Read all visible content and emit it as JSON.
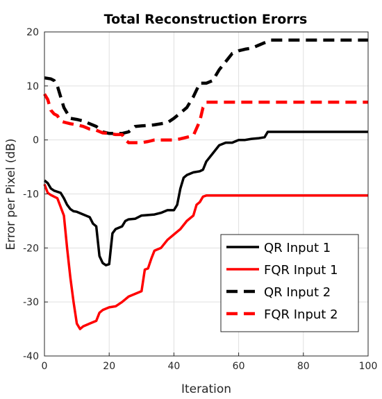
{
  "chart_data": {
    "type": "line",
    "title": "Total Reconstruction Erorrs",
    "xlabel": "Iteration",
    "ylabel": "Error per Pixel (dB)",
    "xlim": [
      0,
      100
    ],
    "ylim": [
      -40,
      20
    ],
    "xticks": [
      0,
      20,
      40,
      60,
      80,
      100
    ],
    "yticks": [
      -40,
      -30,
      -20,
      -10,
      0,
      10,
      20
    ],
    "grid": true,
    "legend_position": "bottom-right",
    "series": [
      {
        "name": "QR Input 1",
        "color": "#000000",
        "dashed": false,
        "x": [
          0,
          1,
          2,
          3,
          5,
          6,
          7,
          8,
          9,
          10,
          12,
          14,
          15,
          16,
          17,
          18,
          19,
          20,
          21,
          22,
          24,
          25,
          26,
          28,
          30,
          34,
          36,
          38,
          40,
          41,
          42,
          43,
          44,
          46,
          48,
          49,
          50,
          52,
          54,
          56,
          58,
          60,
          62,
          64,
          66,
          68,
          69,
          70,
          75,
          80,
          90,
          100
        ],
        "values": [
          -7.5,
          -8,
          -9,
          -9.4,
          -9.8,
          -10.8,
          -12,
          -12.8,
          -13.2,
          -13.3,
          -13.8,
          -14.3,
          -15.5,
          -16,
          -21.5,
          -22.8,
          -23.2,
          -23,
          -17.3,
          -16.5,
          -16,
          -15,
          -14.7,
          -14.6,
          -14,
          -13.8,
          -13.5,
          -13,
          -13,
          -12,
          -9,
          -7,
          -6.5,
          -6,
          -5.8,
          -5.5,
          -4,
          -2.5,
          -1,
          -0.5,
          -0.5,
          0,
          0,
          0.2,
          0.3,
          0.5,
          1.5,
          1.5,
          1.5,
          1.5,
          1.5,
          1.5
        ]
      },
      {
        "name": "FQR Input 1",
        "color": "#ff0000",
        "dashed": false,
        "x": [
          0,
          1,
          2,
          4,
          6,
          7,
          8,
          9,
          10,
          11,
          12,
          14,
          16,
          17,
          18,
          20,
          22,
          24,
          26,
          28,
          30,
          31,
          32,
          33,
          34,
          36,
          38,
          40,
          42,
          44,
          46,
          47,
          48,
          49,
          50,
          60,
          70,
          80,
          90,
          100
        ],
        "values": [
          -8.2,
          -9.8,
          -10.2,
          -10.8,
          -14,
          -20,
          -25.5,
          -30,
          -34,
          -35,
          -34.5,
          -34,
          -33.5,
          -32,
          -31.5,
          -31,
          -30.8,
          -30,
          -29,
          -28.5,
          -28,
          -24,
          -23.8,
          -22,
          -20.5,
          -20,
          -18.5,
          -17.5,
          -16.5,
          -15,
          -14,
          -12,
          -11.5,
          -10.5,
          -10.3,
          -10.3,
          -10.3,
          -10.3,
          -10.3,
          -10.3
        ]
      },
      {
        "name": "QR Input 2",
        "color": "#000000",
        "dashed": true,
        "x": [
          0,
          2,
          3,
          4,
          5,
          6,
          7,
          8,
          10,
          12,
          14,
          16,
          18,
          20,
          22,
          24,
          26,
          28,
          30,
          32,
          34,
          36,
          38,
          40,
          42,
          44,
          46,
          48,
          50,
          52,
          54,
          56,
          58,
          60,
          62,
          64,
          66,
          68,
          70,
          80,
          90,
          100
        ],
        "values": [
          11.5,
          11.3,
          11,
          10,
          8,
          6,
          5,
          4,
          3.8,
          3.5,
          3,
          2.5,
          1.5,
          1.2,
          1.2,
          1.2,
          1.5,
          2.5,
          2.6,
          2.7,
          2.8,
          3,
          3.2,
          4,
          5,
          6,
          8,
          10.5,
          10.5,
          11,
          13,
          14.5,
          16,
          16.5,
          16.8,
          17,
          17.5,
          18,
          18.5,
          18.5,
          18.5,
          18.5
        ]
      },
      {
        "name": "FQR Input 2",
        "color": "#ff0000",
        "dashed": true,
        "x": [
          0,
          1,
          2,
          3,
          4,
          5,
          6,
          8,
          10,
          12,
          14,
          16,
          18,
          20,
          22,
          24,
          25,
          26,
          28,
          30,
          32,
          34,
          36,
          38,
          40,
          42,
          44,
          46,
          48,
          49,
          50,
          60,
          70,
          80,
          90,
          100
        ],
        "values": [
          8.5,
          7.5,
          5.5,
          4.8,
          4.5,
          3.5,
          3.3,
          3,
          2.8,
          2.5,
          2,
          1.8,
          1.3,
          1.2,
          1,
          1,
          0,
          -0.5,
          -0.5,
          -0.5,
          -0.3,
          0,
          0,
          0,
          0,
          0.2,
          0.5,
          0.8,
          3.5,
          6,
          7,
          7,
          7,
          7,
          7,
          7
        ]
      }
    ]
  }
}
